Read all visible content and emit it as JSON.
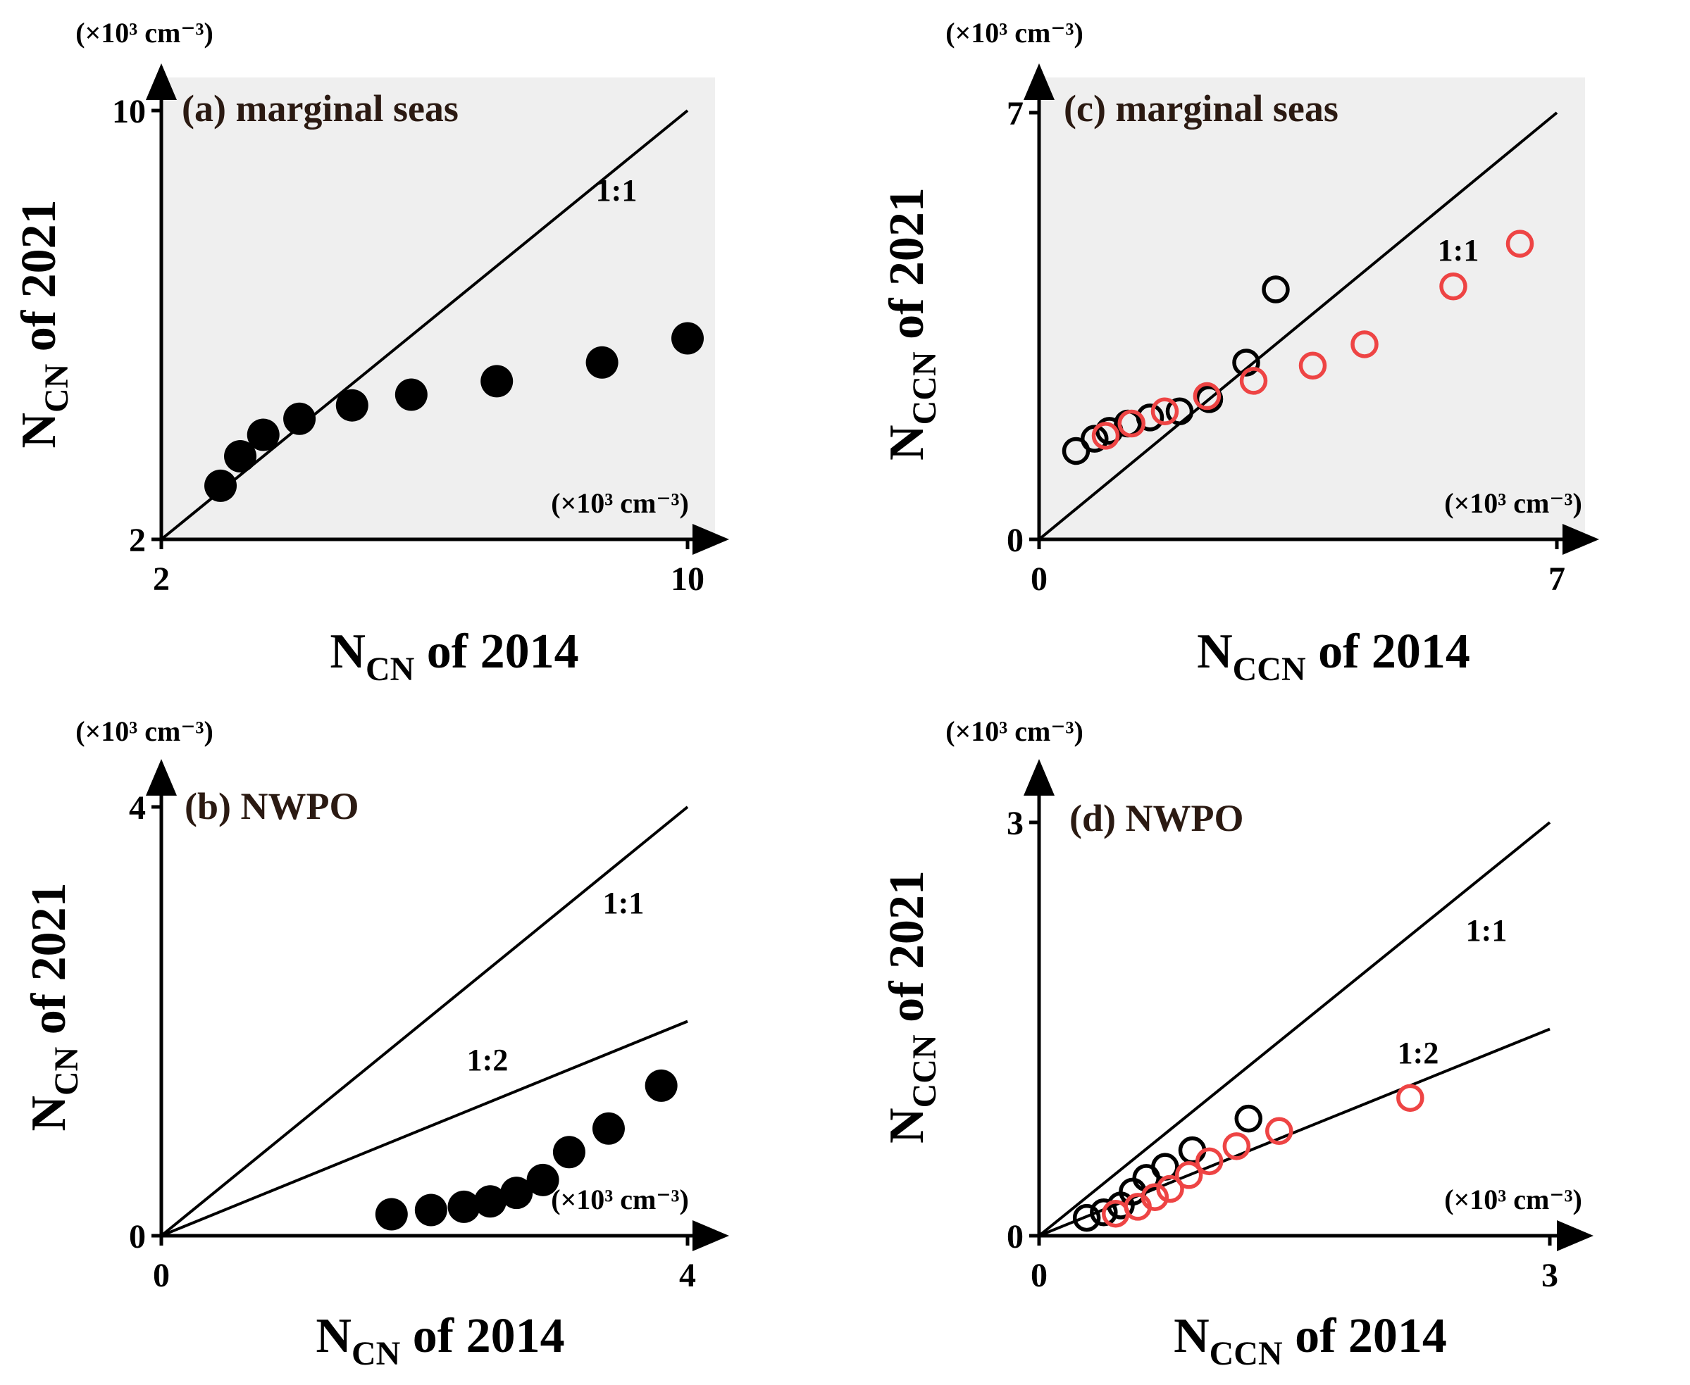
{
  "figure": {
    "panels": [
      {
        "id": "a",
        "title": "(a) marginal seas",
        "unit_x": "(×10³ cm⁻³)",
        "unit_y": "(×10³ cm⁻³)",
        "xtitle": {
          "main": "N",
          "sub": "CN",
          "rest": " of 2014"
        },
        "ytitle": {
          "main": "N",
          "sub": "CN",
          "rest": " of 2021"
        }
      },
      {
        "id": "b",
        "title": "(b) NWPO",
        "unit_x": "(×10³ cm⁻³)",
        "unit_y": "(×10³ cm⁻³)",
        "xtitle": {
          "main": "N",
          "sub": "CN",
          "rest": " of 2014"
        },
        "ytitle": {
          "main": "N",
          "sub": "CN",
          "rest": " of 2021"
        }
      },
      {
        "id": "c",
        "title": "(c) marginal seas",
        "unit_x": "(×10³ cm⁻³)",
        "unit_y": "(×10³ cm⁻³)",
        "xtitle": {
          "main": "N",
          "sub": "CCN",
          "rest": " of 2014"
        },
        "ytitle": {
          "main": "N",
          "sub": "CCN",
          "rest": " of 2021"
        }
      },
      {
        "id": "d",
        "title": "(d) NWPO",
        "unit_x": "(×10³ cm⁻³)",
        "unit_y": "(×10³ cm⁻³)",
        "xtitle": {
          "main": "N",
          "sub": "CCN",
          "rest": " of 2014"
        },
        "ytitle": {
          "main": "N",
          "sub": "CCN",
          "rest": " of 2021"
        }
      }
    ]
  },
  "colors": {
    "panel_bg_marginal": "#efefef",
    "axis": "#000000",
    "filled_marker": "#000000",
    "open_black": "#000000",
    "open_red": "#ee4444"
  },
  "chart_data": [
    {
      "panel": "a",
      "type": "scatter",
      "xlim": [
        2,
        10
      ],
      "ylim": [
        2,
        10
      ],
      "xticks": [
        2,
        10
      ],
      "yticks": [
        2,
        10
      ],
      "reference_lines": [
        {
          "label": "1:1",
          "slope": 1
        }
      ],
      "series": [
        {
          "name": "CN",
          "marker": "filled",
          "color": "#000000",
          "x": [
            2.9,
            3.2,
            3.55,
            4.1,
            4.9,
            5.8,
            7.1,
            8.7,
            10.0
          ],
          "y": [
            3.0,
            3.55,
            3.95,
            4.25,
            4.5,
            4.7,
            4.95,
            5.3,
            5.75
          ]
        }
      ]
    },
    {
      "panel": "b",
      "type": "scatter",
      "xlim": [
        0,
        4
      ],
      "ylim": [
        0,
        4
      ],
      "xticks": [
        0,
        4
      ],
      "yticks": [
        0,
        4
      ],
      "reference_lines": [
        {
          "label": "1:1",
          "slope": 1
        },
        {
          "label": "1:2",
          "slope": 0.5
        }
      ],
      "series": [
        {
          "name": "CN",
          "marker": "filled",
          "color": "#000000",
          "x": [
            1.75,
            2.05,
            2.3,
            2.5,
            2.7,
            2.9,
            3.1,
            3.4,
            3.8
          ],
          "y": [
            0.2,
            0.24,
            0.27,
            0.32,
            0.4,
            0.52,
            0.78,
            1.0,
            1.4
          ]
        }
      ]
    },
    {
      "panel": "c",
      "type": "scatter",
      "xlim": [
        0,
        7
      ],
      "ylim": [
        0,
        7
      ],
      "xticks": [
        0,
        7
      ],
      "yticks": [
        0,
        7
      ],
      "reference_lines": [
        {
          "label": "1:1",
          "slope": 1
        }
      ],
      "series": [
        {
          "name": "black",
          "marker": "open",
          "color": "#000000",
          "x": [
            0.5,
            0.75,
            0.95,
            1.2,
            1.5,
            1.9,
            2.3,
            2.8,
            3.2
          ],
          "y": [
            1.45,
            1.65,
            1.78,
            1.9,
            2.0,
            2.1,
            2.3,
            2.9,
            4.1
          ]
        },
        {
          "name": "red",
          "marker": "open",
          "color": "#ee4444",
          "x": [
            0.9,
            1.25,
            1.7,
            2.27,
            2.9,
            3.7,
            4.4,
            5.6,
            6.5
          ],
          "y": [
            1.7,
            1.9,
            2.1,
            2.35,
            2.6,
            2.85,
            3.2,
            4.15,
            4.85
          ]
        }
      ]
    },
    {
      "panel": "d",
      "type": "scatter",
      "xlim": [
        0,
        3
      ],
      "ylim": [
        0,
        3
      ],
      "xticks": [
        0,
        3
      ],
      "yticks": [
        0,
        3
      ],
      "reference_lines": [
        {
          "label": "1:1",
          "slope": 1
        },
        {
          "label": "1:2",
          "slope": 0.5
        }
      ],
      "series": [
        {
          "name": "black",
          "marker": "open",
          "color": "#000000",
          "x": [
            0.28,
            0.38,
            0.48,
            0.55,
            0.63,
            0.74,
            0.9,
            1.23
          ],
          "y": [
            0.13,
            0.17,
            0.22,
            0.32,
            0.42,
            0.5,
            0.62,
            0.85
          ]
        },
        {
          "name": "red",
          "marker": "open",
          "color": "#ee4444",
          "x": [
            0.45,
            0.58,
            0.68,
            0.77,
            0.88,
            1.0,
            1.16,
            1.41,
            2.18
          ],
          "y": [
            0.16,
            0.21,
            0.28,
            0.34,
            0.44,
            0.54,
            0.65,
            0.76,
            1.0
          ]
        }
      ]
    }
  ]
}
